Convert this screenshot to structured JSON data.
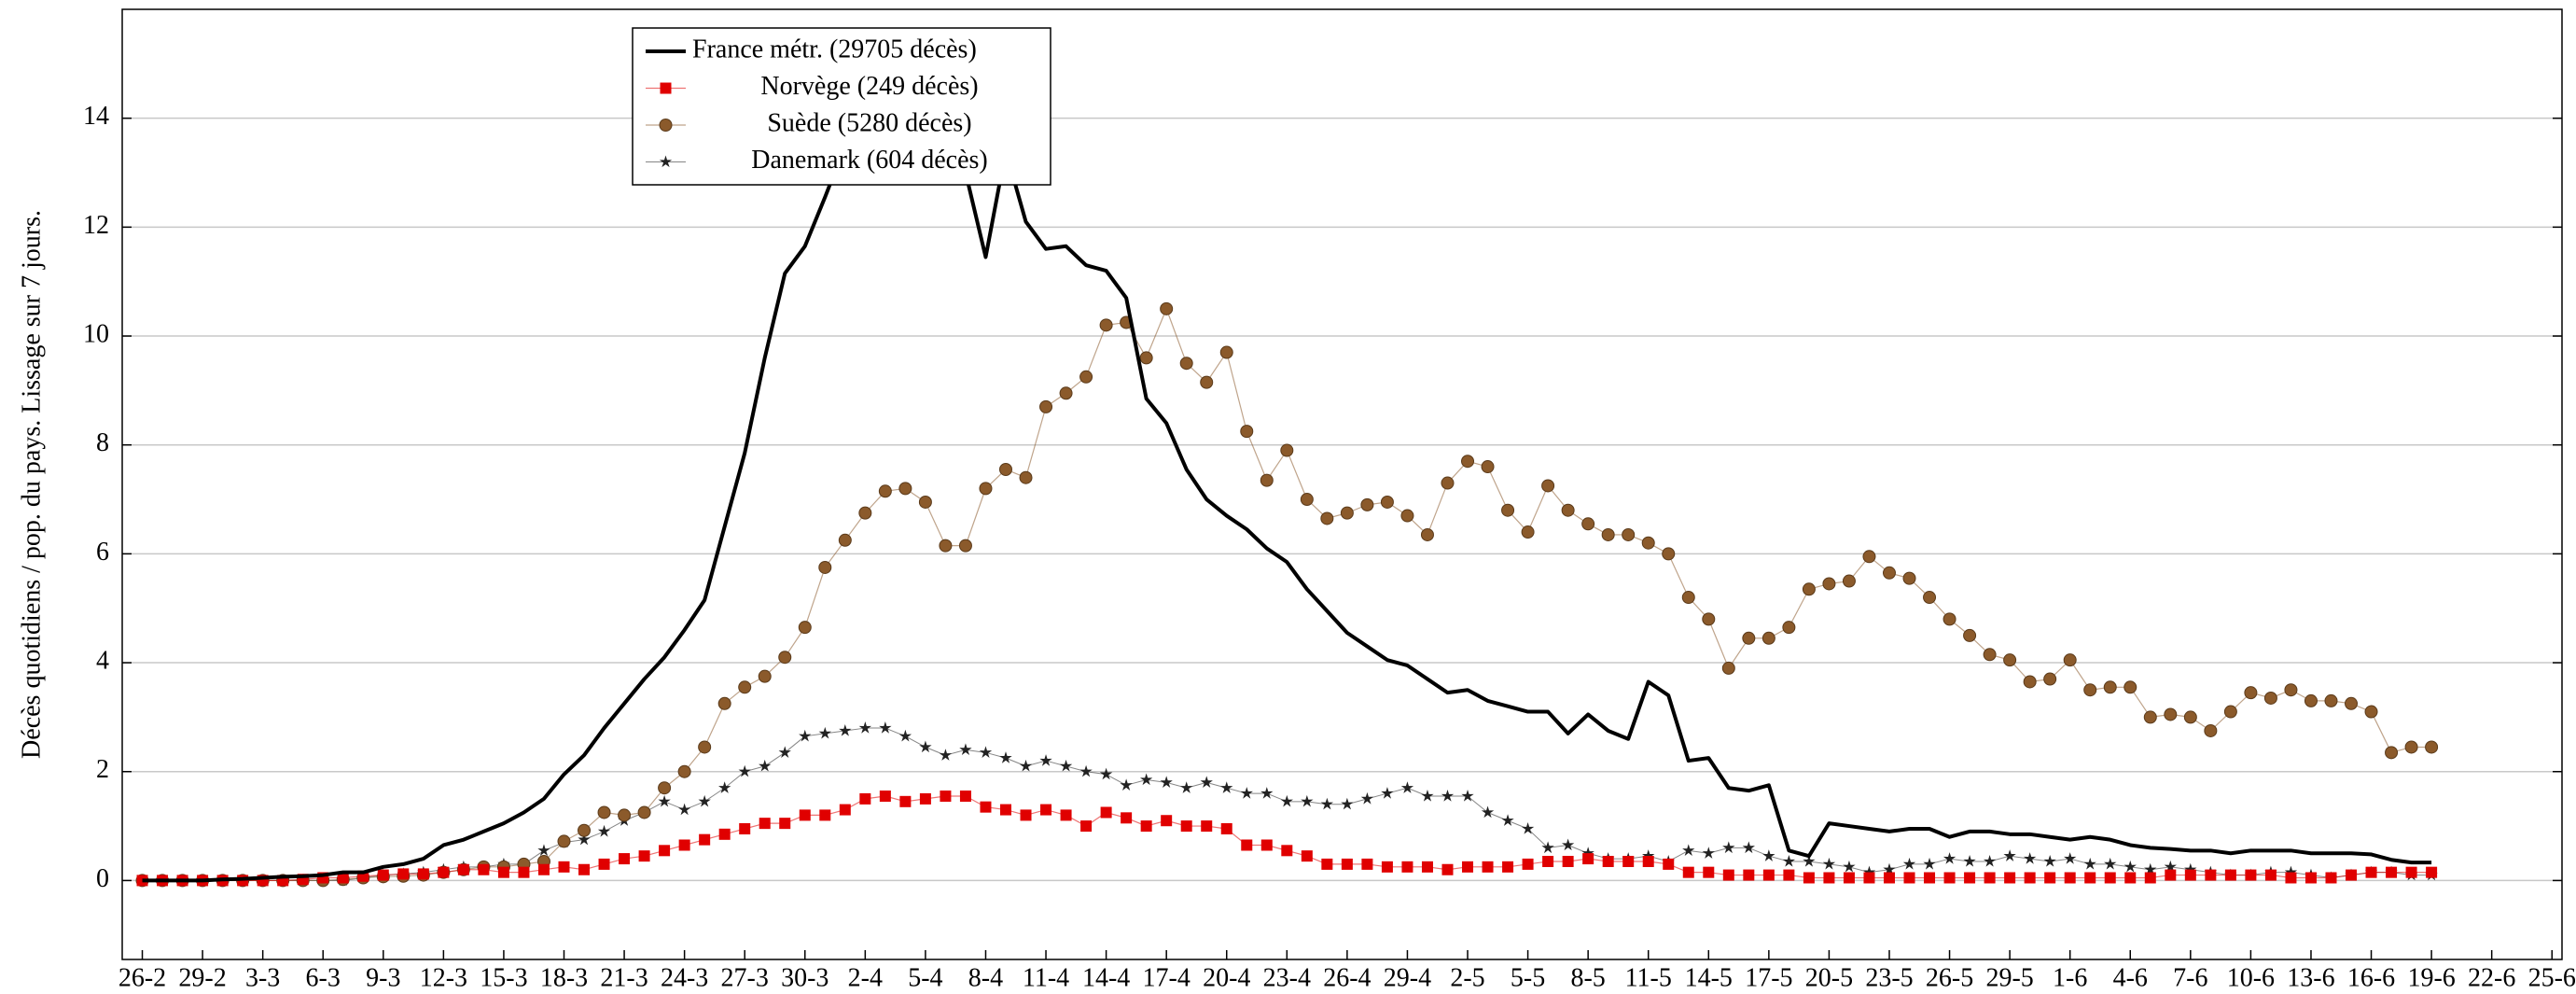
{
  "chart_data": {
    "type": "line",
    "y_label": "Décès quotidiens / pop. du pays. Lissage sur 7 jours.",
    "categories": [
      "26-2",
      null,
      null,
      "29-2",
      null,
      null,
      "3-3",
      null,
      null,
      "6-3",
      null,
      null,
      "9-3",
      null,
      null,
      "12-3",
      null,
      null,
      "15-3",
      null,
      null,
      "18-3",
      null,
      null,
      "21-3",
      null,
      null,
      "24-3",
      null,
      null,
      "27-3",
      null,
      null,
      "30-3",
      null,
      null,
      "2-4",
      null,
      null,
      "5-4",
      null,
      null,
      "8-4",
      null,
      null,
      "11-4",
      null,
      null,
      "14-4",
      null,
      null,
      "17-4",
      null,
      null,
      "20-4",
      null,
      null,
      "23-4",
      null,
      null,
      "26-4",
      null,
      null,
      "29-4",
      null,
      null,
      "2-5",
      null,
      null,
      "5-5",
      null,
      null,
      "8-5",
      null,
      null,
      "11-5",
      null,
      null,
      "14-5",
      null,
      null,
      "17-5",
      null,
      null,
      "20-5",
      null,
      null,
      "23-5",
      null,
      null,
      "26-5",
      null,
      null,
      "29-5",
      null,
      null,
      "1-6",
      null,
      null,
      "4-6",
      null,
      null,
      "7-6",
      null,
      null,
      "10-6",
      null,
      null,
      "13-6",
      null,
      null,
      "16-6",
      null,
      null,
      "19-6",
      null,
      null,
      "22-6",
      null,
      null,
      "25-6"
    ],
    "series": [
      {
        "name": "France métr. (29705 décès)",
        "color": "#000000",
        "marker": "none",
        "line_width": 4,
        "values": [
          0,
          0,
          0,
          0,
          0.02,
          0.03,
          0.05,
          0.07,
          0.08,
          0.1,
          0.15,
          0.15,
          0.25,
          0.3,
          0.4,
          0.65,
          0.75,
          0.9,
          1.05,
          1.25,
          1.5,
          1.95,
          2.3,
          2.8,
          3.25,
          3.7,
          4.1,
          4.6,
          5.15,
          6.5,
          7.85,
          9.6,
          11.15,
          11.65,
          12.55,
          13.5,
          13.8,
          14.8,
          15.5,
          15.0,
          14.2,
          13.0,
          11.45,
          13.4,
          12.1,
          11.6,
          11.65,
          11.3,
          11.2,
          10.7,
          8.85,
          8.4,
          7.55,
          7.0,
          6.7,
          6.45,
          6.1,
          5.85,
          5.35,
          4.95,
          4.55,
          4.3,
          4.05,
          3.95,
          3.7,
          3.45,
          3.5,
          3.3,
          3.2,
          3.1,
          3.1,
          2.7,
          3.05,
          2.75,
          2.6,
          3.65,
          3.4,
          2.2,
          2.25,
          1.7,
          1.65,
          1.75,
          0.55,
          0.45,
          1.05,
          1.0,
          0.95,
          0.9,
          0.95,
          0.95,
          0.8,
          0.9,
          0.9,
          0.85,
          0.85,
          0.8,
          0.75,
          0.8,
          0.75,
          0.65,
          0.6,
          0.58,
          0.55,
          0.55,
          0.5,
          0.55,
          0.55,
          0.55,
          0.5,
          0.5,
          0.5,
          0.48,
          0.38,
          0.33,
          0.33,
          null,
          null,
          null,
          null,
          null,
          null
        ]
      },
      {
        "name": "Norvège (249 décès)",
        "color": "#e00000",
        "marker": "square",
        "line_width": 1.2,
        "values": [
          0,
          0,
          0,
          0,
          0,
          0,
          0,
          0,
          0.02,
          0.05,
          0.05,
          0.08,
          0.1,
          0.12,
          0.12,
          0.15,
          0.2,
          0.2,
          0.15,
          0.15,
          0.2,
          0.25,
          0.2,
          0.3,
          0.4,
          0.45,
          0.55,
          0.65,
          0.75,
          0.85,
          0.95,
          1.05,
          1.05,
          1.2,
          1.2,
          1.3,
          1.5,
          1.55,
          1.45,
          1.5,
          1.55,
          1.55,
          1.35,
          1.3,
          1.2,
          1.3,
          1.2,
          1.0,
          1.25,
          1.15,
          1.0,
          1.1,
          1.0,
          1.0,
          0.95,
          0.65,
          0.65,
          0.55,
          0.45,
          0.3,
          0.3,
          0.3,
          0.25,
          0.25,
          0.25,
          0.2,
          0.25,
          0.25,
          0.25,
          0.3,
          0.35,
          0.35,
          0.4,
          0.35,
          0.35,
          0.35,
          0.3,
          0.15,
          0.15,
          0.1,
          0.1,
          0.1,
          0.1,
          0.05,
          0.05,
          0.05,
          0.05,
          0.05,
          0.05,
          0.05,
          0.05,
          0.05,
          0.05,
          0.05,
          0.05,
          0.05,
          0.05,
          0.05,
          0.05,
          0.05,
          0.05,
          0.1,
          0.1,
          0.1,
          0.1,
          0.1,
          0.1,
          0.05,
          0.05,
          0.05,
          0.1,
          0.15,
          0.15,
          0.15,
          0.15,
          null,
          null,
          null,
          null,
          null,
          null
        ]
      },
      {
        "name": "Suède (5280 décès)",
        "color": "#8b5a2b",
        "marker": "circle",
        "line_width": 1.2,
        "values": [
          0,
          0,
          0,
          0,
          0,
          0,
          0,
          0,
          0,
          0,
          0.02,
          0.05,
          0.07,
          0.08,
          0.1,
          0.15,
          0.2,
          0.25,
          0.25,
          0.3,
          0.35,
          0.72,
          0.92,
          1.25,
          1.2,
          1.25,
          1.7,
          2.0,
          2.45,
          3.25,
          3.55,
          3.75,
          4.1,
          4.65,
          5.75,
          6.25,
          6.75,
          7.15,
          7.2,
          6.95,
          6.15,
          6.15,
          7.2,
          7.55,
          7.4,
          8.7,
          8.95,
          9.25,
          10.2,
          10.25,
          9.6,
          10.5,
          9.5,
          9.15,
          9.7,
          8.25,
          7.35,
          7.9,
          7.0,
          6.65,
          6.75,
          6.9,
          6.95,
          6.7,
          6.35,
          7.3,
          7.7,
          7.6,
          6.8,
          6.4,
          7.25,
          6.8,
          6.55,
          6.35,
          6.35,
          6.2,
          6.0,
          5.2,
          4.8,
          3.9,
          4.45,
          4.45,
          4.65,
          5.35,
          5.45,
          5.5,
          5.95,
          5.65,
          5.55,
          5.2,
          4.8,
          4.5,
          4.15,
          4.05,
          3.65,
          3.7,
          4.05,
          3.5,
          3.55,
          3.55,
          3.0,
          3.05,
          3.0,
          2.75,
          3.1,
          3.45,
          3.35,
          3.5,
          3.3,
          3.3,
          3.25,
          3.1,
          2.35,
          2.45,
          2.45,
          null,
          null,
          null,
          null,
          null,
          null
        ]
      },
      {
        "name": "Danemark (604 décès)",
        "color": "#222222",
        "marker": "star",
        "line_width": 1,
        "values": [
          0,
          0,
          0,
          0,
          0,
          0,
          0,
          0,
          0,
          0,
          0,
          0.05,
          0.1,
          0.12,
          0.15,
          0.2,
          0.25,
          0.25,
          0.3,
          0.3,
          0.55,
          0.7,
          0.75,
          0.9,
          1.1,
          1.25,
          1.45,
          1.3,
          1.45,
          1.7,
          2.0,
          2.1,
          2.35,
          2.65,
          2.7,
          2.75,
          2.8,
          2.8,
          2.65,
          2.45,
          2.3,
          2.4,
          2.35,
          2.25,
          2.1,
          2.2,
          2.1,
          2.0,
          1.95,
          1.75,
          1.85,
          1.8,
          1.7,
          1.8,
          1.7,
          1.6,
          1.6,
          1.45,
          1.45,
          1.4,
          1.4,
          1.5,
          1.6,
          1.7,
          1.55,
          1.55,
          1.55,
          1.25,
          1.1,
          0.95,
          0.6,
          0.65,
          0.5,
          0.4,
          0.4,
          0.45,
          0.35,
          0.55,
          0.5,
          0.6,
          0.6,
          0.45,
          0.35,
          0.35,
          0.3,
          0.25,
          0.15,
          0.2,
          0.3,
          0.3,
          0.4,
          0.35,
          0.35,
          0.45,
          0.4,
          0.35,
          0.4,
          0.3,
          0.3,
          0.25,
          0.2,
          0.25,
          0.2,
          0.15,
          0.1,
          0.1,
          0.15,
          0.15,
          0.1,
          0.05,
          0.1,
          0.15,
          0.15,
          0.1,
          0.1,
          null,
          null,
          null,
          null,
          null,
          null
        ]
      }
    ],
    "ylim": [
      -1.45,
      16
    ],
    "yticks": [
      0,
      2,
      4,
      6,
      8,
      10,
      12,
      14
    ],
    "grid": true
  }
}
